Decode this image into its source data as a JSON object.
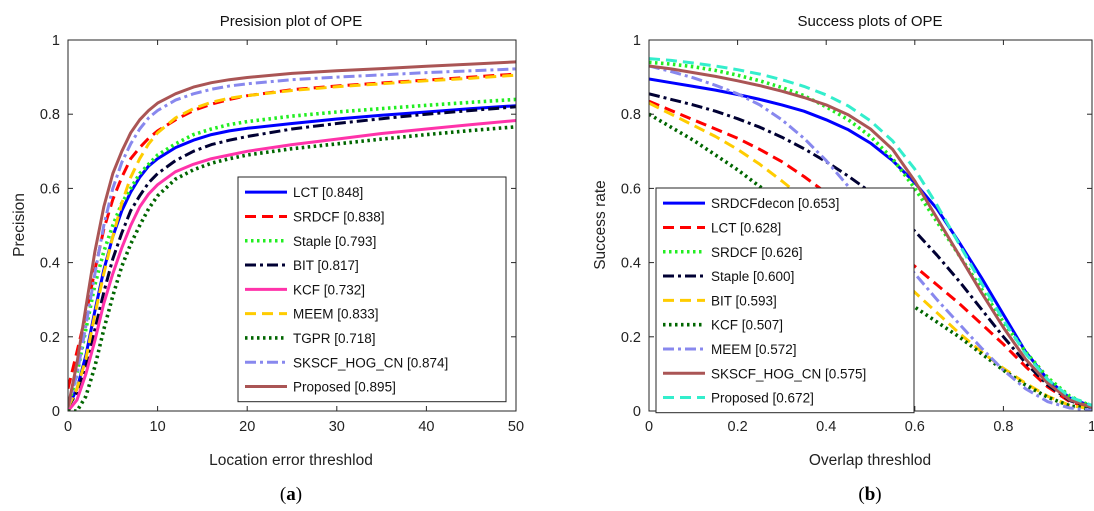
{
  "captions": {
    "a": "a",
    "b": "b"
  },
  "colors": {
    "blue": "#0000ff",
    "red": "#ff0000",
    "green": "#22ee22",
    "navy": "#000033",
    "magenta": "#ff33aa",
    "yellow": "#ffcc00",
    "darkgreen": "#006600",
    "lavender": "#8888ee",
    "brown": "#aa5555",
    "cyan": "#33eecc"
  },
  "chart_data": [
    {
      "type": "line",
      "title": "Presision plot of OPE",
      "xlabel": "Location error threshlod",
      "ylabel": "Precision",
      "xlim": [
        0,
        50
      ],
      "ylim": [
        0,
        1
      ],
      "xticks": [
        "0",
        "10",
        "20",
        "30",
        "40",
        "50"
      ],
      "yticks": [
        "0",
        "0.2",
        "0.4",
        "0.6",
        "0.8",
        "1"
      ],
      "legend_position": "bottom-right",
      "x": [
        0,
        1,
        2,
        3,
        4,
        5,
        6,
        7,
        8,
        9,
        10,
        12,
        14,
        16,
        18,
        20,
        25,
        30,
        35,
        40,
        45,
        50
      ],
      "series": [
        {
          "name": "LCT [0.848]",
          "color": "blue",
          "dash": "solid",
          "values": [
            0.01,
            0.06,
            0.15,
            0.27,
            0.38,
            0.47,
            0.54,
            0.59,
            0.63,
            0.66,
            0.68,
            0.71,
            0.73,
            0.745,
            0.755,
            0.762,
            0.775,
            0.787,
            0.797,
            0.806,
            0.815,
            0.823
          ]
        },
        {
          "name": "SRDCF [0.838]",
          "color": "red",
          "dash": "dashed",
          "values": [
            0.06,
            0.16,
            0.26,
            0.38,
            0.49,
            0.57,
            0.63,
            0.68,
            0.71,
            0.735,
            0.755,
            0.785,
            0.81,
            0.827,
            0.84,
            0.85,
            0.866,
            0.876,
            0.884,
            0.892,
            0.9,
            0.908
          ]
        },
        {
          "name": "Staple [0.793]",
          "color": "green",
          "dash": "dotted",
          "values": [
            0.01,
            0.1,
            0.22,
            0.34,
            0.43,
            0.5,
            0.56,
            0.6,
            0.64,
            0.665,
            0.69,
            0.72,
            0.745,
            0.76,
            0.772,
            0.78,
            0.795,
            0.806,
            0.815,
            0.824,
            0.832,
            0.84
          ]
        },
        {
          "name": "BIT [0.817]",
          "color": "navy",
          "dash": "dashdot",
          "values": [
            0.01,
            0.05,
            0.12,
            0.22,
            0.32,
            0.41,
            0.48,
            0.54,
            0.58,
            0.615,
            0.64,
            0.675,
            0.7,
            0.718,
            0.73,
            0.74,
            0.76,
            0.775,
            0.788,
            0.8,
            0.81,
            0.82
          ]
        },
        {
          "name": "KCF [0.732]",
          "color": "magenta",
          "dash": "solid",
          "values": [
            0.0,
            0.03,
            0.1,
            0.19,
            0.29,
            0.37,
            0.44,
            0.5,
            0.55,
            0.585,
            0.61,
            0.645,
            0.665,
            0.68,
            0.69,
            0.7,
            0.718,
            0.733,
            0.748,
            0.76,
            0.772,
            0.783
          ]
        },
        {
          "name": "MEEM [0.833]",
          "color": "yellow",
          "dash": "dashed",
          "values": [
            0.01,
            0.06,
            0.14,
            0.26,
            0.37,
            0.47,
            0.56,
            0.63,
            0.68,
            0.72,
            0.75,
            0.79,
            0.815,
            0.832,
            0.843,
            0.85,
            0.864,
            0.874,
            0.882,
            0.89,
            0.897,
            0.905
          ]
        },
        {
          "name": "TGPR [0.718]",
          "color": "darkgreen",
          "dash": "dotted",
          "values": [
            0.0,
            0.0,
            0.04,
            0.12,
            0.22,
            0.31,
            0.39,
            0.45,
            0.5,
            0.545,
            0.58,
            0.625,
            0.65,
            0.668,
            0.68,
            0.69,
            0.707,
            0.72,
            0.733,
            0.745,
            0.756,
            0.766
          ]
        },
        {
          "name": "SKSCF_HOG_CN [0.874]",
          "color": "lavender",
          "dash": "dashdot",
          "values": [
            0.01,
            0.1,
            0.23,
            0.37,
            0.5,
            0.6,
            0.67,
            0.72,
            0.76,
            0.79,
            0.81,
            0.838,
            0.855,
            0.867,
            0.876,
            0.882,
            0.893,
            0.9,
            0.906,
            0.912,
            0.917,
            0.922
          ]
        },
        {
          "name": "Proposed [0.895]",
          "color": "brown",
          "dash": "solid",
          "values": [
            0.01,
            0.13,
            0.28,
            0.43,
            0.55,
            0.64,
            0.7,
            0.75,
            0.785,
            0.81,
            0.83,
            0.855,
            0.873,
            0.885,
            0.893,
            0.899,
            0.91,
            0.917,
            0.923,
            0.929,
            0.935,
            0.941
          ]
        }
      ]
    },
    {
      "type": "line",
      "title": "Success plots of OPE",
      "xlabel": "Overlap threshlod",
      "ylabel": "Success rate",
      "xlim": [
        0,
        1
      ],
      "ylim": [
        0,
        1
      ],
      "xticks": [
        "0",
        "0.2",
        "0.4",
        "0.6",
        "0.8",
        "1"
      ],
      "yticks": [
        "0",
        "0.2",
        "0.4",
        "0.6",
        "0.8",
        "1"
      ],
      "legend_position": "bottom-left",
      "x": [
        0,
        0.05,
        0.1,
        0.15,
        0.2,
        0.25,
        0.3,
        0.35,
        0.4,
        0.45,
        0.5,
        0.55,
        0.6,
        0.65,
        0.7,
        0.75,
        0.8,
        0.85,
        0.9,
        0.95,
        1.0
      ],
      "series": [
        {
          "name": "SRDCFdecon [0.653]",
          "color": "blue",
          "dash": "solid",
          "values": [
            0.895,
            0.885,
            0.875,
            0.865,
            0.853,
            0.84,
            0.825,
            0.808,
            0.785,
            0.758,
            0.722,
            0.675,
            0.615,
            0.545,
            0.455,
            0.36,
            0.26,
            0.16,
            0.085,
            0.035,
            0.012
          ]
        },
        {
          "name": "LCT [0.628]",
          "color": "red",
          "dash": "dashed",
          "values": [
            0.835,
            0.81,
            0.785,
            0.76,
            0.735,
            0.705,
            0.672,
            0.632,
            0.588,
            0.54,
            0.49,
            0.44,
            0.39,
            0.34,
            0.29,
            0.235,
            0.18,
            0.12,
            0.065,
            0.025,
            0.008
          ]
        },
        {
          "name": "SRDCF [0.626]",
          "color": "green",
          "dash": "dotted",
          "values": [
            0.94,
            0.935,
            0.928,
            0.918,
            0.905,
            0.89,
            0.872,
            0.85,
            0.82,
            0.785,
            0.74,
            0.68,
            0.6,
            0.51,
            0.42,
            0.33,
            0.24,
            0.16,
            0.09,
            0.04,
            0.012
          ]
        },
        {
          "name": "Staple [0.600]",
          "color": "navy",
          "dash": "dashdot",
          "values": [
            0.855,
            0.84,
            0.825,
            0.808,
            0.788,
            0.765,
            0.738,
            0.707,
            0.672,
            0.633,
            0.59,
            0.54,
            0.485,
            0.42,
            0.35,
            0.275,
            0.2,
            0.13,
            0.07,
            0.028,
            0.008
          ]
        },
        {
          "name": "BIT [0.593]",
          "color": "yellow",
          "dash": "dashed",
          "values": [
            0.83,
            0.8,
            0.77,
            0.74,
            0.705,
            0.665,
            0.62,
            0.572,
            0.522,
            0.472,
            0.422,
            0.372,
            0.32,
            0.265,
            0.21,
            0.16,
            0.115,
            0.075,
            0.04,
            0.015,
            0.005
          ]
        },
        {
          "name": "KCF [0.507]",
          "color": "darkgreen",
          "dash": "dotted",
          "values": [
            0.8,
            0.765,
            0.73,
            0.69,
            0.65,
            0.605,
            0.56,
            0.51,
            0.46,
            0.41,
            0.365,
            0.32,
            0.28,
            0.24,
            0.2,
            0.155,
            0.11,
            0.07,
            0.037,
            0.014,
            0.004
          ]
        },
        {
          "name": "MEEM [0.572]",
          "color": "lavender",
          "dash": "dashdot",
          "values": [
            0.93,
            0.915,
            0.898,
            0.878,
            0.855,
            0.825,
            0.785,
            0.735,
            0.675,
            0.605,
            0.525,
            0.445,
            0.37,
            0.3,
            0.235,
            0.17,
            0.11,
            0.06,
            0.025,
            0.008,
            0.002
          ]
        },
        {
          "name": "SKSCF_HOG_CN [0.575]",
          "color": "brown",
          "dash": "solid",
          "values": [
            0.93,
            0.922,
            0.912,
            0.902,
            0.89,
            0.877,
            0.862,
            0.845,
            0.825,
            0.798,
            0.76,
            0.705,
            0.62,
            0.52,
            0.42,
            0.32,
            0.225,
            0.14,
            0.075,
            0.03,
            0.01
          ]
        },
        {
          "name": "Proposed [0.672]",
          "color": "cyan",
          "dash": "dashed",
          "values": [
            0.95,
            0.945,
            0.938,
            0.93,
            0.92,
            0.908,
            0.893,
            0.875,
            0.852,
            0.822,
            0.782,
            0.728,
            0.652,
            0.555,
            0.45,
            0.345,
            0.245,
            0.155,
            0.085,
            0.038,
            0.015
          ]
        }
      ]
    }
  ]
}
